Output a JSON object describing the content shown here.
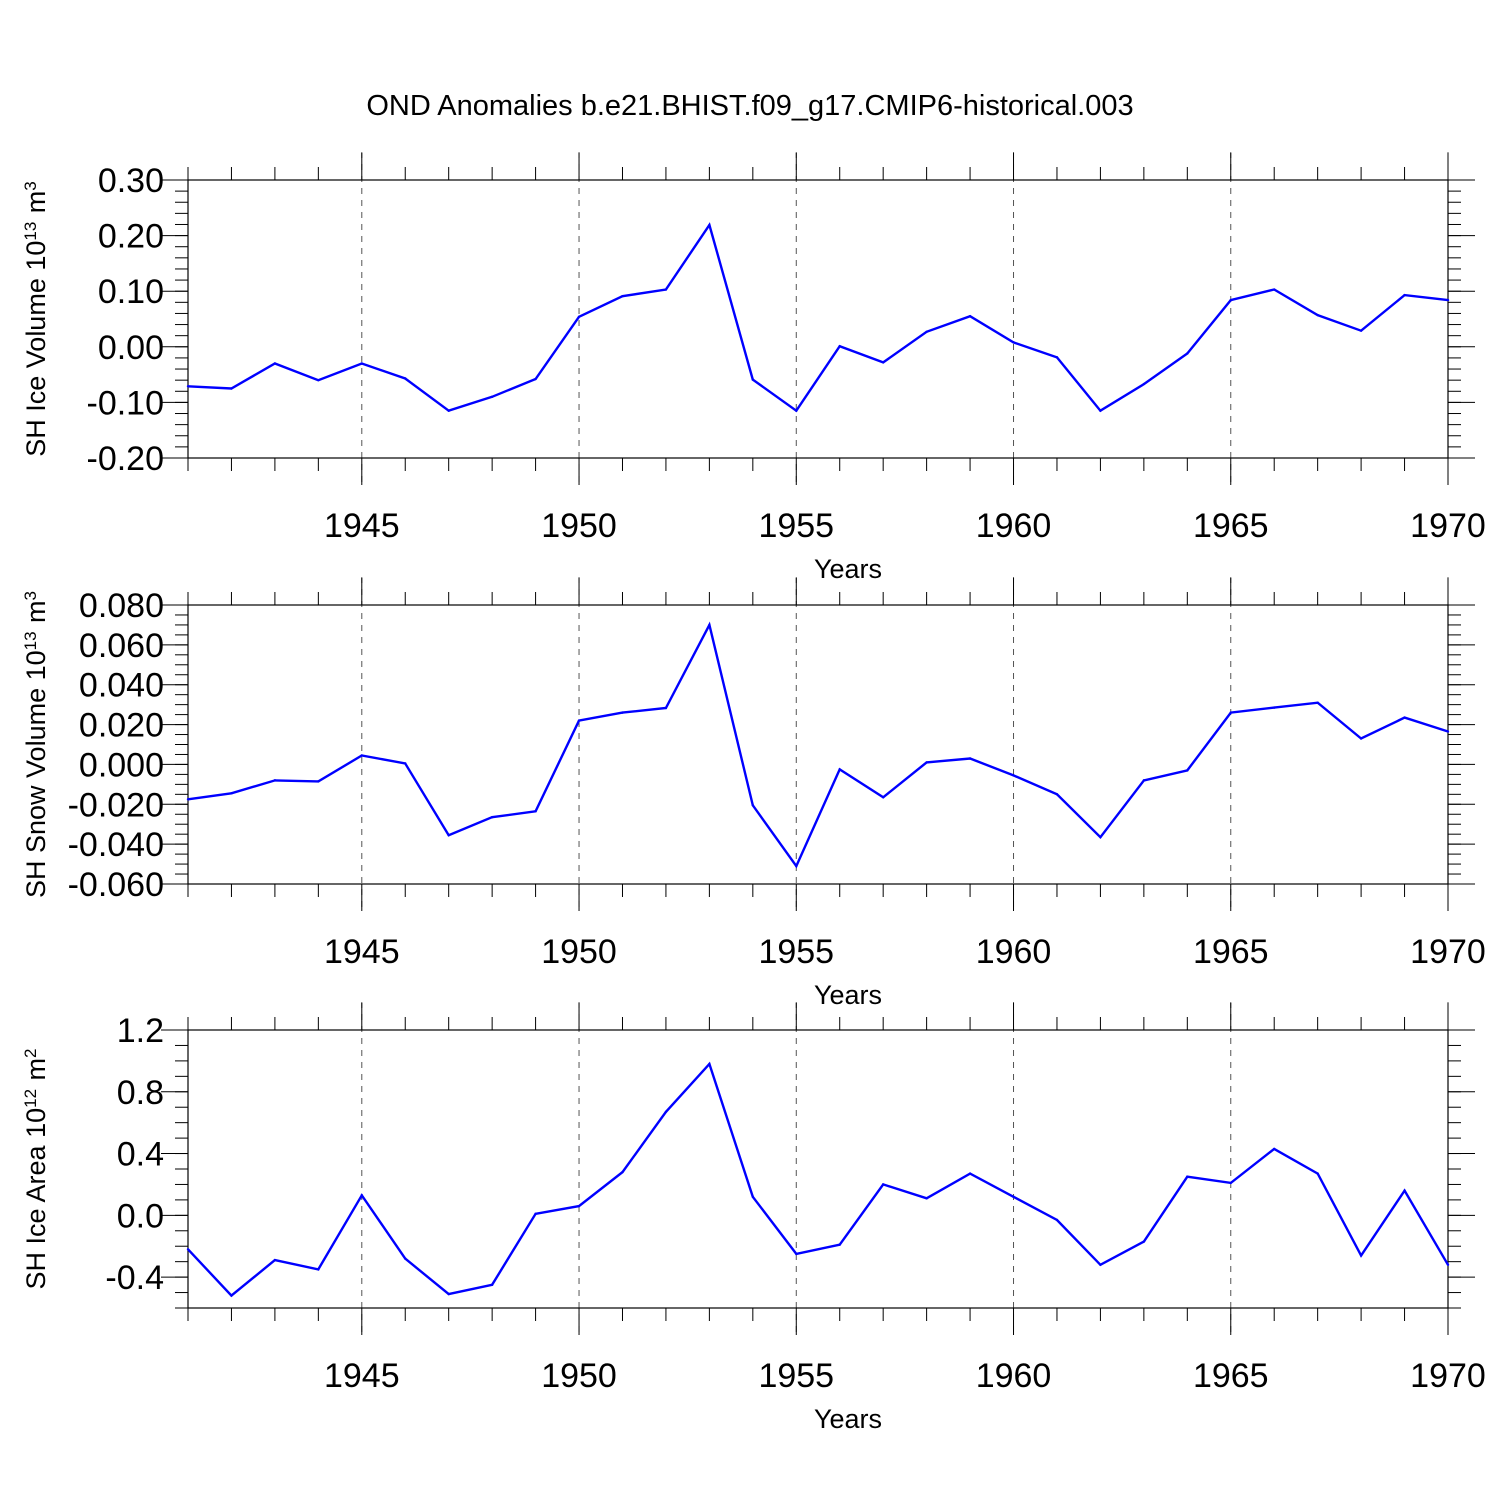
{
  "figure": {
    "title": "OND Anomalies b.e21.BHIST.f09_g17.CMIP6-historical.003",
    "line_color": "#0000ff"
  },
  "chart_data": [
    {
      "type": "line",
      "title": "OND Anomalies b.e21.BHIST.f09_g17.CMIP6-historical.003",
      "xlabel": "Years",
      "ylabel_base": "SH Ice Volume 10",
      "ylabel_exp": "13",
      "ylabel_unit": " m",
      "ylabel_unit_exp": "3",
      "xlim": [
        1941,
        1970
      ],
      "ylim": [
        -0.2,
        0.3
      ],
      "x_ticks": [
        1945,
        1950,
        1955,
        1960,
        1965,
        1970
      ],
      "y_ticks": [
        -0.2,
        -0.1,
        0.0,
        0.1,
        0.2,
        0.3
      ],
      "y_tick_labels": [
        "-0.20",
        "-0.10",
        "0.00",
        "0.10",
        "0.20",
        "0.30"
      ],
      "y_minor_step": 0.02,
      "grid": "vertical dashed at major x ticks",
      "series": [
        {
          "name": "SH Ice Volume",
          "x": [
            1941,
            1942,
            1943,
            1944,
            1945,
            1946,
            1947,
            1948,
            1949,
            1950,
            1951,
            1952,
            1953,
            1954,
            1955,
            1956,
            1957,
            1958,
            1959,
            1960,
            1961,
            1962,
            1963,
            1964,
            1965,
            1966,
            1967,
            1968,
            1969,
            1970
          ],
          "values": [
            -0.071,
            -0.075,
            -0.03,
            -0.06,
            -0.03,
            -0.057,
            -0.115,
            -0.09,
            -0.058,
            0.054,
            0.091,
            0.103,
            0.219,
            -0.059,
            -0.115,
            0.001,
            -0.028,
            0.027,
            0.055,
            0.008,
            -0.019,
            -0.115,
            -0.067,
            -0.012,
            0.084,
            0.103,
            0.057,
            0.029,
            0.093,
            0.084
          ]
        }
      ]
    },
    {
      "type": "line",
      "xlabel": "Years",
      "ylabel_base": "SH Snow Volume 10",
      "ylabel_exp": "13",
      "ylabel_unit": " m",
      "ylabel_unit_exp": "3",
      "xlim": [
        1941,
        1970
      ],
      "ylim": [
        -0.06,
        0.08
      ],
      "x_ticks": [
        1945,
        1950,
        1955,
        1960,
        1965,
        1970
      ],
      "y_ticks": [
        -0.06,
        -0.04,
        -0.02,
        0.0,
        0.02,
        0.04,
        0.06,
        0.08
      ],
      "y_tick_labels": [
        "-0.060",
        "-0.040",
        "-0.020",
        "0.000",
        "0.020",
        "0.040",
        "0.060",
        "0.080"
      ],
      "y_minor_step": 0.005,
      "grid": "vertical dashed at major x ticks",
      "series": [
        {
          "name": "SH Snow Volume",
          "x": [
            1941,
            1942,
            1943,
            1944,
            1945,
            1946,
            1947,
            1948,
            1949,
            1950,
            1951,
            1952,
            1953,
            1954,
            1955,
            1956,
            1957,
            1958,
            1959,
            1960,
            1961,
            1962,
            1963,
            1964,
            1965,
            1966,
            1967,
            1968,
            1969,
            1970
          ],
          "values": [
            -0.0175,
            -0.0145,
            -0.008,
            -0.0085,
            0.0045,
            0.0005,
            -0.0355,
            -0.0265,
            -0.0235,
            0.022,
            0.026,
            0.0283,
            0.07,
            -0.0205,
            -0.051,
            -0.0025,
            -0.0165,
            0.001,
            0.003,
            -0.0055,
            -0.015,
            -0.0365,
            -0.008,
            -0.003,
            0.026,
            0.0285,
            0.031,
            0.013,
            0.0235,
            0.0165
          ]
        }
      ]
    },
    {
      "type": "line",
      "xlabel": "Years",
      "ylabel_base": "SH Ice Area 10",
      "ylabel_exp": "12",
      "ylabel_unit": " m",
      "ylabel_unit_exp": "2",
      "xlim": [
        1941,
        1970
      ],
      "ylim": [
        -0.6,
        1.2
      ],
      "x_ticks": [
        1945,
        1950,
        1955,
        1960,
        1965,
        1970
      ],
      "y_ticks": [
        -0.4,
        0.0,
        0.4,
        0.8,
        1.2
      ],
      "y_tick_labels": [
        "-0.4",
        "0.0",
        "0.4",
        "0.8",
        "1.2"
      ],
      "y_minor_step": 0.1,
      "grid": "vertical dashed at major x ticks",
      "series": [
        {
          "name": "SH Ice Area",
          "x": [
            1941,
            1942,
            1943,
            1944,
            1945,
            1946,
            1947,
            1948,
            1949,
            1950,
            1951,
            1952,
            1953,
            1954,
            1955,
            1956,
            1957,
            1958,
            1959,
            1960,
            1961,
            1962,
            1963,
            1964,
            1965,
            1966,
            1967,
            1968,
            1969,
            1970
          ],
          "values": [
            -0.22,
            -0.52,
            -0.29,
            -0.35,
            0.13,
            -0.28,
            -0.51,
            -0.45,
            0.01,
            0.06,
            0.28,
            0.67,
            0.98,
            0.12,
            -0.25,
            -0.19,
            0.2,
            0.11,
            0.27,
            0.12,
            -0.03,
            -0.32,
            -0.17,
            0.25,
            0.21,
            0.43,
            0.27,
            -0.26,
            0.16,
            -0.32
          ]
        }
      ]
    }
  ]
}
